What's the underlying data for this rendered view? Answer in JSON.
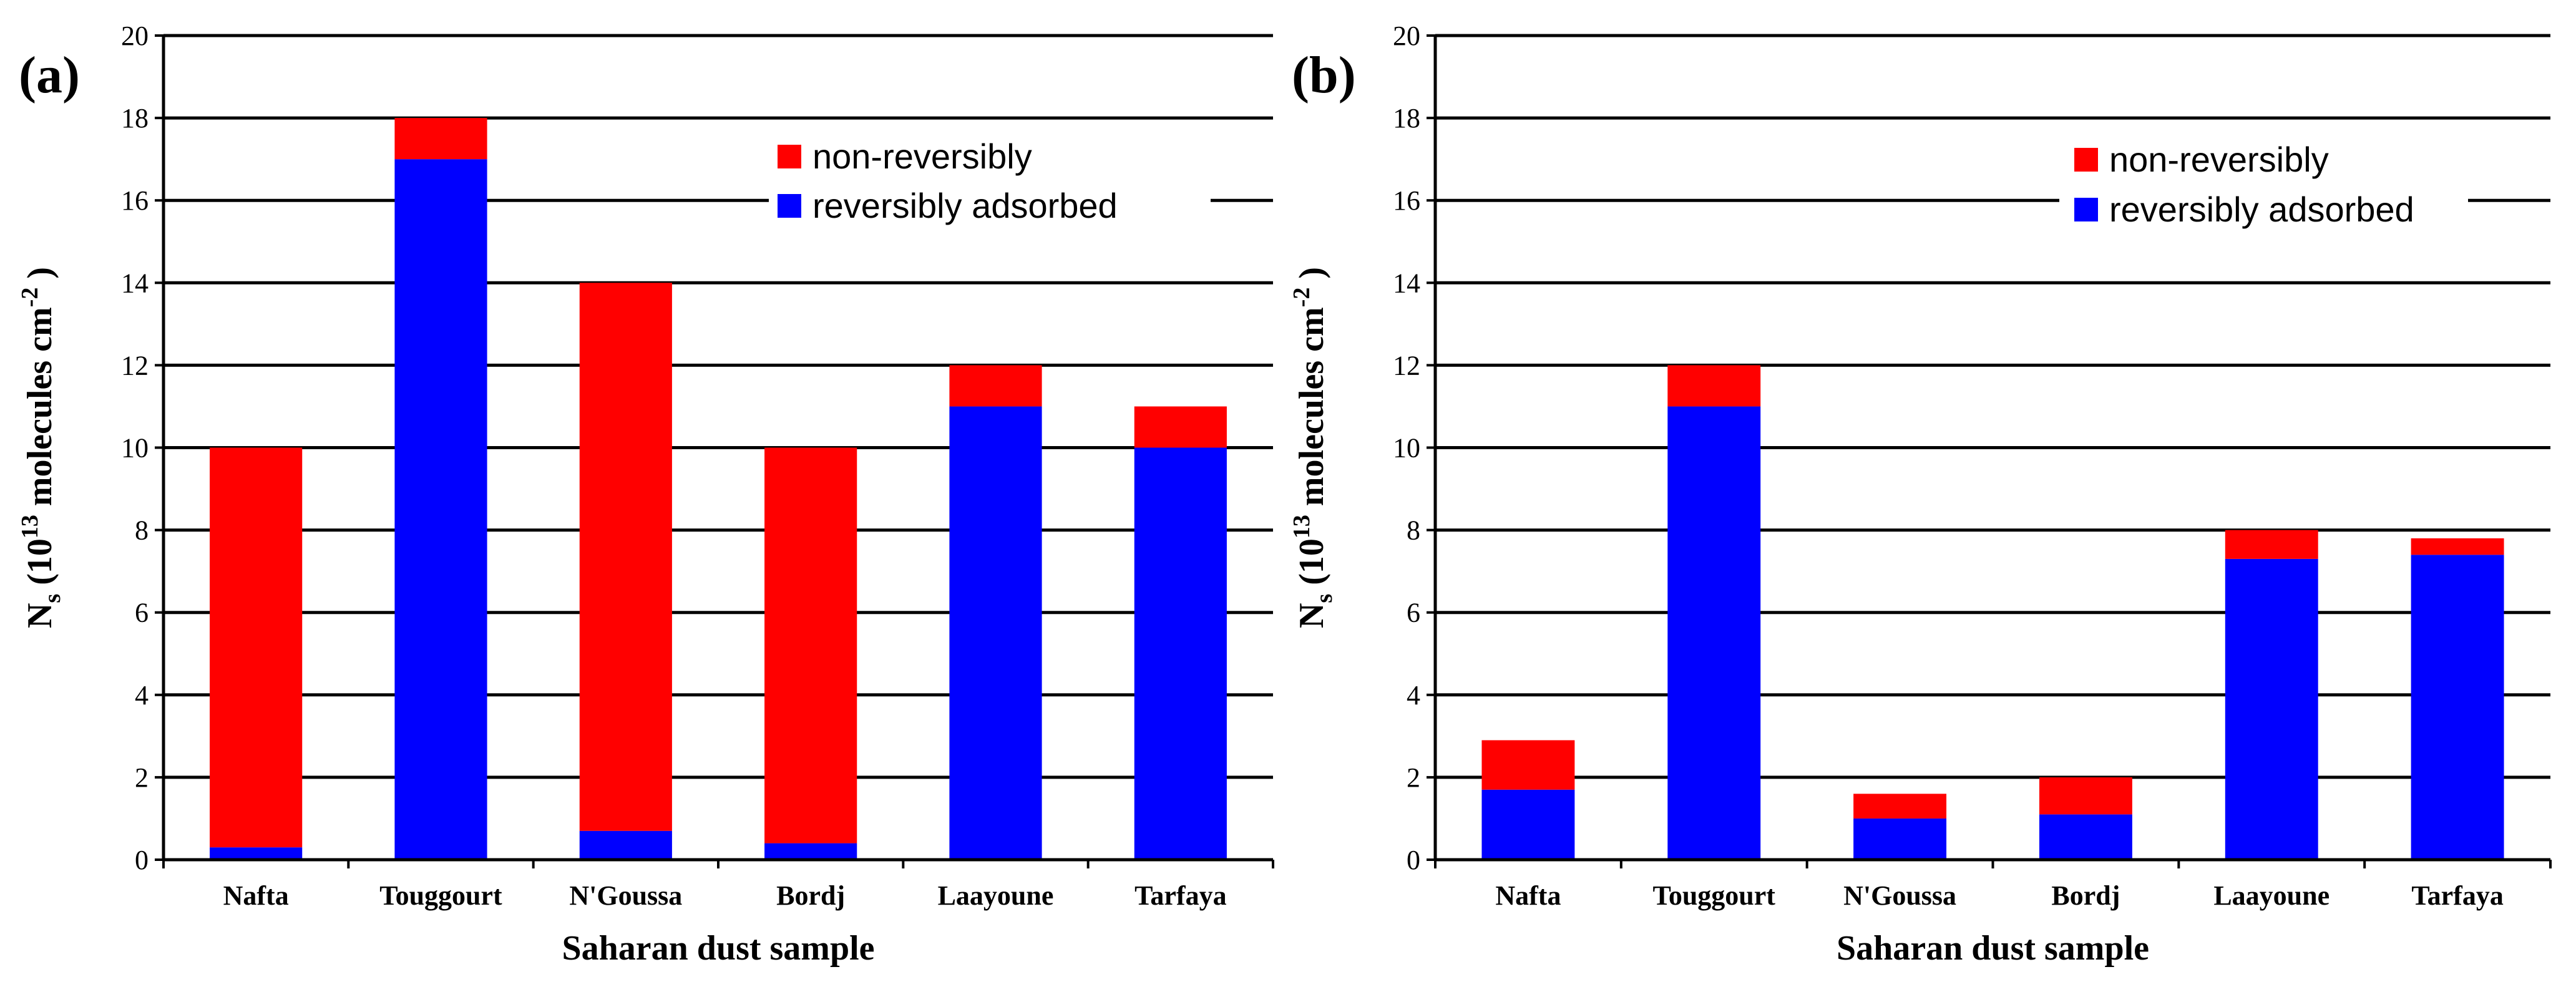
{
  "colors": {
    "non_reversible": "#ff0000",
    "reversible": "#0000ff",
    "axis": "#000000"
  },
  "chart_data": [
    {
      "type": "bar",
      "stacked": true,
      "panel_label": "(a)",
      "categories": [
        "Nafta",
        "Touggourt",
        "N'Goussa",
        "Bordj",
        "Laayoune",
        "Tarfaya"
      ],
      "series": [
        {
          "name": "reversibly adsorbed",
          "color": "#0000ff",
          "values": [
            0.3,
            17.0,
            0.7,
            0.4,
            11.0,
            10.0
          ]
        },
        {
          "name": "non-reversibly",
          "color": "#ff0000",
          "values": [
            9.7,
            1.0,
            13.3,
            9.6,
            1.0,
            1.0
          ]
        }
      ],
      "xlabel": "Saharan dust sample",
      "ylabel": {
        "main": "N",
        "sub": "s",
        "open": " (10",
        "exp": "13",
        "mid": " molecules cm",
        "exp2": "-2",
        "close": " )"
      },
      "ylim": [
        0,
        20
      ],
      "yticks": [
        "0",
        "2",
        "4",
        "6",
        "8",
        "10",
        "12",
        "14",
        "16",
        "18",
        "20"
      ],
      "grid": true,
      "legend": {
        "position": "top-right",
        "entries": [
          "non-reversibly",
          "reversibly adsorbed"
        ]
      }
    },
    {
      "type": "bar",
      "stacked": true,
      "panel_label": "(b)",
      "categories": [
        "Nafta",
        "Touggourt",
        "N'Goussa",
        "Bordj",
        "Laayoune",
        "Tarfaya"
      ],
      "series": [
        {
          "name": "reversibly adsorbed",
          "color": "#0000ff",
          "values": [
            1.7,
            11.0,
            1.0,
            1.1,
            7.3,
            7.4
          ]
        },
        {
          "name": "non-reversibly",
          "color": "#ff0000",
          "values": [
            1.2,
            1.0,
            0.6,
            0.9,
            0.7,
            0.4
          ]
        }
      ],
      "xlabel": "Saharan dust sample",
      "ylabel": {
        "main": "N",
        "sub": "s",
        "open": " (10",
        "exp": "13",
        "mid": " molecules cm",
        "exp2": "-2",
        "close": " )"
      },
      "ylim": [
        0,
        20
      ],
      "yticks": [
        "0",
        "2",
        "4",
        "6",
        "8",
        "10",
        "12",
        "14",
        "16",
        "18",
        "20"
      ],
      "grid": true,
      "legend": {
        "position": "top-right",
        "entries": [
          "non-reversibly",
          "reversibly adsorbed"
        ]
      }
    }
  ]
}
